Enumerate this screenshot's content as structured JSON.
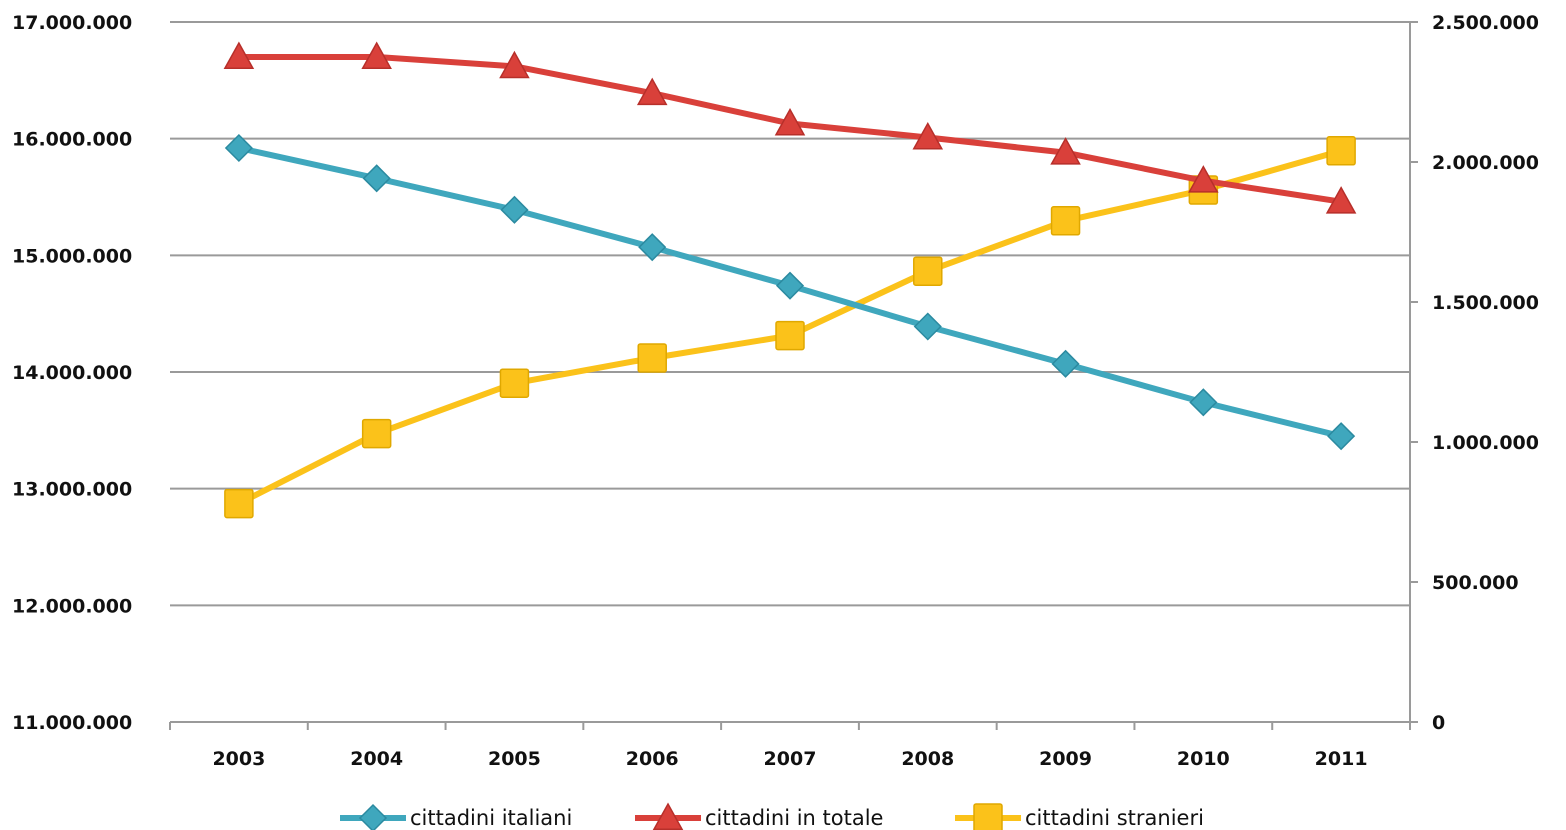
{
  "chart_data": {
    "type": "line",
    "categories": [
      "2003",
      "2004",
      "2005",
      "2006",
      "2007",
      "2008",
      "2009",
      "2010",
      "2011"
    ],
    "y_left": {
      "range": [
        11000000,
        17000000
      ],
      "ticks": [
        11000000,
        12000000,
        13000000,
        14000000,
        15000000,
        16000000,
        17000000
      ],
      "tick_labels": [
        "11.000.000",
        "12.000.000",
        "13.000.000",
        "14.000.000",
        "15.000.000",
        "16.000.000",
        "17.000.000"
      ]
    },
    "y_right": {
      "range": [
        0,
        2500000
      ],
      "ticks": [
        0,
        500000,
        1000000,
        1500000,
        2000000,
        2500000
      ],
      "tick_labels": [
        "0",
        "500.000",
        "1.000.000",
        "1.500.000",
        "2.000.000",
        "2.500.000"
      ]
    },
    "grid": true,
    "legend_position": "bottom",
    "series": [
      {
        "name": "cittadini italiani",
        "axis": "left",
        "marker": "diamond",
        "color": "#3fa7bd",
        "values": [
          15920000,
          15660000,
          15390000,
          15070000,
          14740000,
          14390000,
          14070000,
          13740000,
          13450000
        ]
      },
      {
        "name": "cittadini in totale",
        "axis": "left",
        "marker": "triangle",
        "color": "#d9403a",
        "values": [
          16700000,
          16700000,
          16620000,
          16390000,
          16130000,
          16010000,
          15880000,
          15640000,
          15460000
        ]
      },
      {
        "name": "cittadini stranieri",
        "axis": "right",
        "marker": "square",
        "color": "#fbc21a",
        "values": [
          780000,
          1030000,
          1210000,
          1300000,
          1380000,
          1610000,
          1790000,
          1900000,
          2040000
        ]
      }
    ]
  }
}
